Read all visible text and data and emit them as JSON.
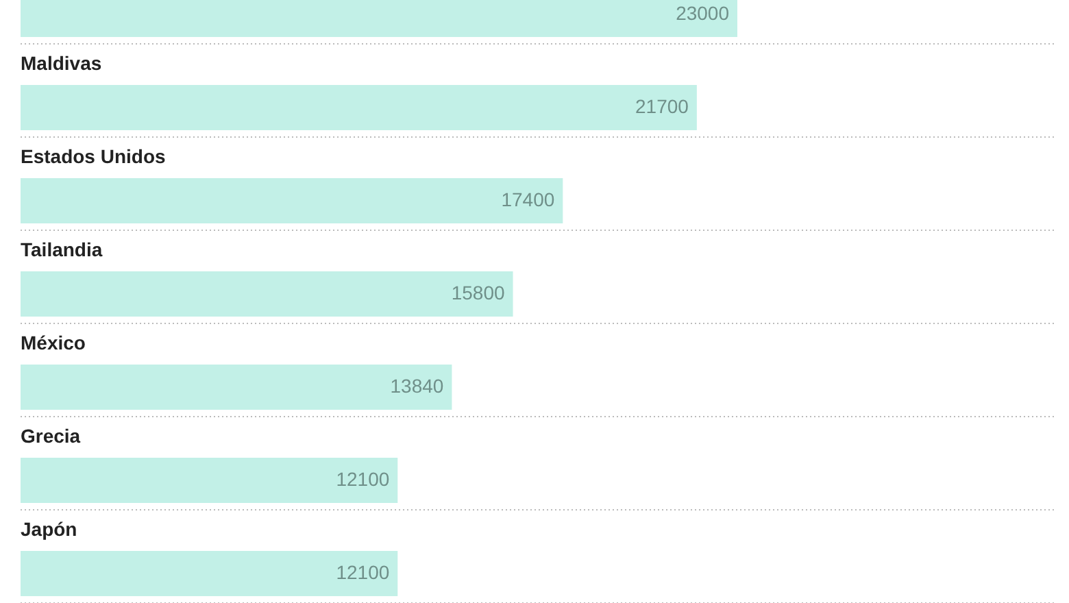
{
  "chart_data": {
    "type": "bar",
    "orientation": "horizontal",
    "categories": [
      null,
      "Maldivas",
      "Estados Unidos",
      "Tailandia",
      "México",
      "Grecia",
      "Japón"
    ],
    "values": [
      23000,
      21700,
      17400,
      15800,
      13840,
      12100,
      12100
    ],
    "color": "#c2f0e7",
    "data_labels": true,
    "grid": "y"
  }
}
